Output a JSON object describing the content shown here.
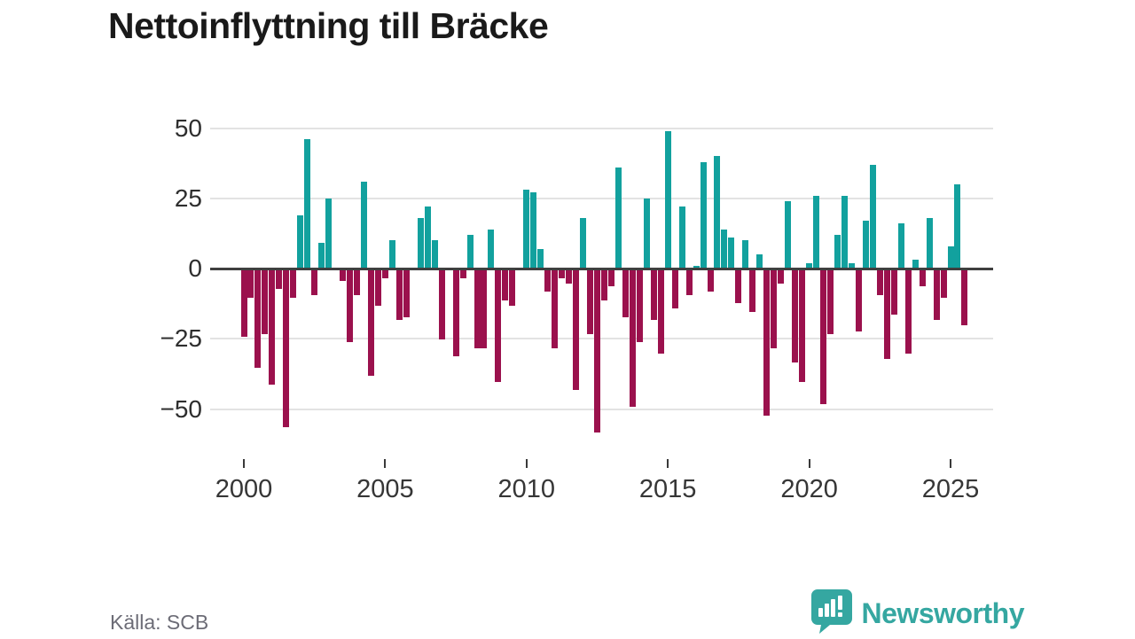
{
  "title": "Nettoinflyttning till Bräcke",
  "source": "Källa: SCB",
  "logo": {
    "text": "Newsworthy"
  },
  "colors": {
    "positive": "#12a19e",
    "negative": "#9b114d",
    "grid": "#e3e3e3",
    "zero_line": "#3f3f3f",
    "title": "#1a1a1a",
    "axis_text": "#2e2e2e",
    "source_text": "#6c6c76",
    "logo": "#35a7a1"
  },
  "chart_data": {
    "type": "bar",
    "title": "Nettoinflyttning till Bräcke",
    "x_unit": "quarter",
    "start": "2000Q1",
    "end": "2025Q3",
    "values_by_year": [
      {
        "year": 2000,
        "q": [
          -24,
          -10,
          -35,
          -23
        ]
      },
      {
        "year": 2001,
        "q": [
          -41,
          -7,
          -56,
          -10
        ]
      },
      {
        "year": 2002,
        "q": [
          19,
          46,
          -9,
          9
        ]
      },
      {
        "year": 2003,
        "q": [
          25,
          0,
          -4,
          -26
        ]
      },
      {
        "year": 2004,
        "q": [
          -9,
          31,
          -38,
          -13
        ]
      },
      {
        "year": 2005,
        "q": [
          -3,
          10,
          -18,
          -17
        ]
      },
      {
        "year": 2006,
        "q": [
          0,
          18,
          22,
          10
        ]
      },
      {
        "year": 2007,
        "q": [
          -25,
          0,
          -31,
          -3
        ]
      },
      {
        "year": 2008,
        "q": [
          12,
          -28,
          -28,
          14
        ]
      },
      {
        "year": 2009,
        "q": [
          -40,
          -11,
          -13,
          0
        ]
      },
      {
        "year": 2010,
        "q": [
          28,
          27,
          7,
          -8
        ]
      },
      {
        "year": 2011,
        "q": [
          -28,
          -3,
          -5,
          -43
        ]
      },
      {
        "year": 2012,
        "q": [
          18,
          -23,
          -58,
          -11
        ]
      },
      {
        "year": 2013,
        "q": [
          -6,
          36,
          -17,
          -49
        ]
      },
      {
        "year": 2014,
        "q": [
          -26,
          25,
          -18,
          -30
        ]
      },
      {
        "year": 2015,
        "q": [
          49,
          -14,
          22,
          -9
        ]
      },
      {
        "year": 2016,
        "q": [
          1,
          38,
          -8,
          40
        ]
      },
      {
        "year": 2017,
        "q": [
          14,
          11,
          -12,
          10
        ]
      },
      {
        "year": 2018,
        "q": [
          -15,
          5,
          -52,
          -28
        ]
      },
      {
        "year": 2019,
        "q": [
          -5,
          24,
          -33,
          -40
        ]
      },
      {
        "year": 2020,
        "q": [
          2,
          26,
          -48,
          -23
        ]
      },
      {
        "year": 2021,
        "q": [
          12,
          26,
          2,
          -22
        ]
      },
      {
        "year": 2022,
        "q": [
          17,
          37,
          -9,
          -32
        ]
      },
      {
        "year": 2023,
        "q": [
          -16,
          16,
          -30,
          3
        ]
      },
      {
        "year": 2024,
        "q": [
          -6,
          18,
          -18,
          -10
        ]
      },
      {
        "year": 2025,
        "q": [
          8,
          30,
          -20
        ]
      }
    ],
    "y_ticks": [
      {
        "label": "50",
        "value": 50
      },
      {
        "label": "25",
        "value": 25
      },
      {
        "label": "0",
        "value": 0
      },
      {
        "label": "−25",
        "value": -25
      },
      {
        "label": "−50",
        "value": -50
      }
    ],
    "x_ticks": [
      {
        "label": "2000",
        "year": 2000
      },
      {
        "label": "2005",
        "year": 2005
      },
      {
        "label": "2010",
        "year": 2010
      },
      {
        "label": "2015",
        "year": 2015
      },
      {
        "label": "2020",
        "year": 2020
      },
      {
        "label": "2025",
        "year": 2025
      }
    ],
    "ylim": [
      -60,
      52
    ],
    "grid": "horizontal",
    "legend": "none"
  }
}
